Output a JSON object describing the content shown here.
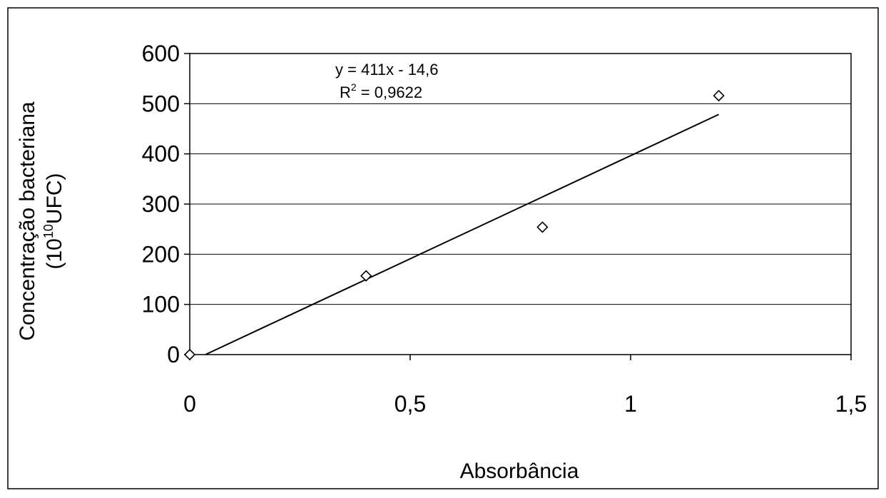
{
  "chart_data": {
    "type": "scatter",
    "title": "",
    "xlabel": "Absorbância",
    "ylabel_line1": "Concentração bacteriana",
    "ylabel_line2_prefix": "(10",
    "ylabel_line2_sup": "10",
    "ylabel_line2_suffix": "UFC)",
    "xlim": [
      0,
      1.5
    ],
    "ylim": [
      0,
      600
    ],
    "x_ticks": [
      0,
      0.5,
      1,
      1.5
    ],
    "x_tick_labels": [
      "0",
      "0,5",
      "1",
      "1,5"
    ],
    "y_ticks": [
      0,
      100,
      200,
      300,
      400,
      500,
      600
    ],
    "y_tick_labels": [
      "0",
      "100",
      "200",
      "300",
      "400",
      "500",
      "600"
    ],
    "grid": "horizontal",
    "marker": "diamond-open",
    "points": [
      {
        "x": 0,
        "y": 0
      },
      {
        "x": 0.4,
        "y": 157
      },
      {
        "x": 0.8,
        "y": 254
      },
      {
        "x": 1.2,
        "y": 516
      }
    ],
    "trendline": {
      "slope": 411,
      "intercept": -14.6,
      "x_range": [
        0.036,
        1.2
      ],
      "equation": "y = 411x - 14,6",
      "r2_prefix": "R",
      "r2_sup": "2",
      "r2_suffix": " = 0,9622"
    }
  }
}
